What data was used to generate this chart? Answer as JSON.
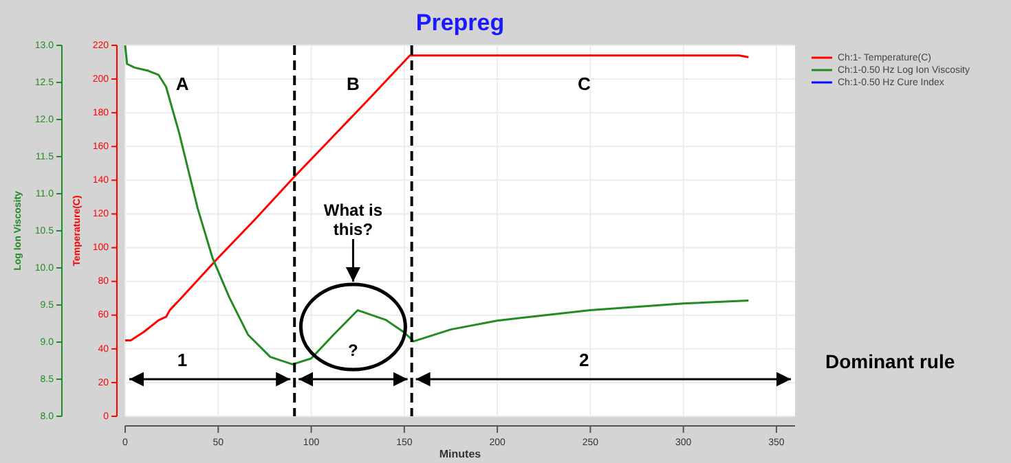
{
  "chart_data": {
    "type": "line",
    "title": "Prepreg",
    "xlabel": "Minutes",
    "ylabel": "Temperature(C)",
    "y2label": "Log Ion Viscosity",
    "xlim": [
      0,
      360
    ],
    "xticks": [
      0,
      50,
      100,
      150,
      200,
      250,
      300,
      350
    ],
    "ylim": [
      0,
      220
    ],
    "yticks": [
      0,
      20,
      40,
      60,
      80,
      100,
      120,
      140,
      160,
      180,
      200,
      220
    ],
    "y2lim": [
      8,
      13
    ],
    "y2ticks": [
      {
        "value": 8,
        "label": "8.0"
      },
      {
        "value": 8.5,
        "label": "8.5"
      },
      {
        "value": 9,
        "label": "9.0"
      },
      {
        "value": 9.5,
        "label": "9.5"
      },
      {
        "value": 10,
        "label": "10.0"
      },
      {
        "value": 10.5,
        "label": "10.5"
      },
      {
        "value": 11,
        "label": "11.0"
      },
      {
        "value": 11.5,
        "label": "11.5"
      },
      {
        "value": 12,
        "label": "12.0"
      },
      {
        "value": 12.5,
        "label": "12.5"
      },
      {
        "value": 13,
        "label": "13.0"
      }
    ],
    "grid": true,
    "legend": "top right",
    "series": [
      {
        "name": "Ch:1- Temperature(C)",
        "color": "#ff0000",
        "x": [
          0,
          3,
          10,
          18,
          22,
          24,
          30,
          50,
          70,
          90,
          110,
          130,
          153,
          154,
          200,
          250,
          300,
          330,
          335
        ],
        "values": [
          45,
          45,
          50,
          57,
          59,
          63,
          70,
          94,
          117,
          141,
          164,
          187,
          214,
          214,
          214,
          214,
          214,
          214,
          213
        ]
      },
      {
        "name": "Ch:1-0.50 Hz Log Ion Viscosity",
        "color": "#228b22",
        "axis": "y2",
        "x": [
          0,
          1,
          5,
          12,
          18,
          22,
          29,
          39,
          47,
          56,
          66,
          78,
          90,
          100,
          112,
          125,
          140,
          150,
          155,
          175,
          200,
          250,
          300,
          335
        ],
        "values": [
          13,
          12.75,
          12.7,
          12.66,
          12.6,
          12.44,
          11.82,
          10.8,
          10.13,
          9.6,
          9.1,
          8.8,
          8.7,
          8.78,
          9.1,
          9.43,
          9.3,
          9.13,
          9.01,
          9.17,
          9.29,
          9.43,
          9.52,
          9.56
        ]
      },
      {
        "name": "Ch:1-0.50 Hz Cure Index",
        "color": "#0000ff"
      }
    ],
    "ref_lines": [
      {
        "axis": "x",
        "value": 91,
        "color": "#000000",
        "line_style": "dashed"
      },
      {
        "axis": "x",
        "value": 154,
        "color": "#000000",
        "line_style": "dashed"
      }
    ],
    "annotations": [
      "A",
      "B",
      "C",
      "1",
      "?",
      "2",
      "What is this?",
      "Dominant rule"
    ]
  }
}
